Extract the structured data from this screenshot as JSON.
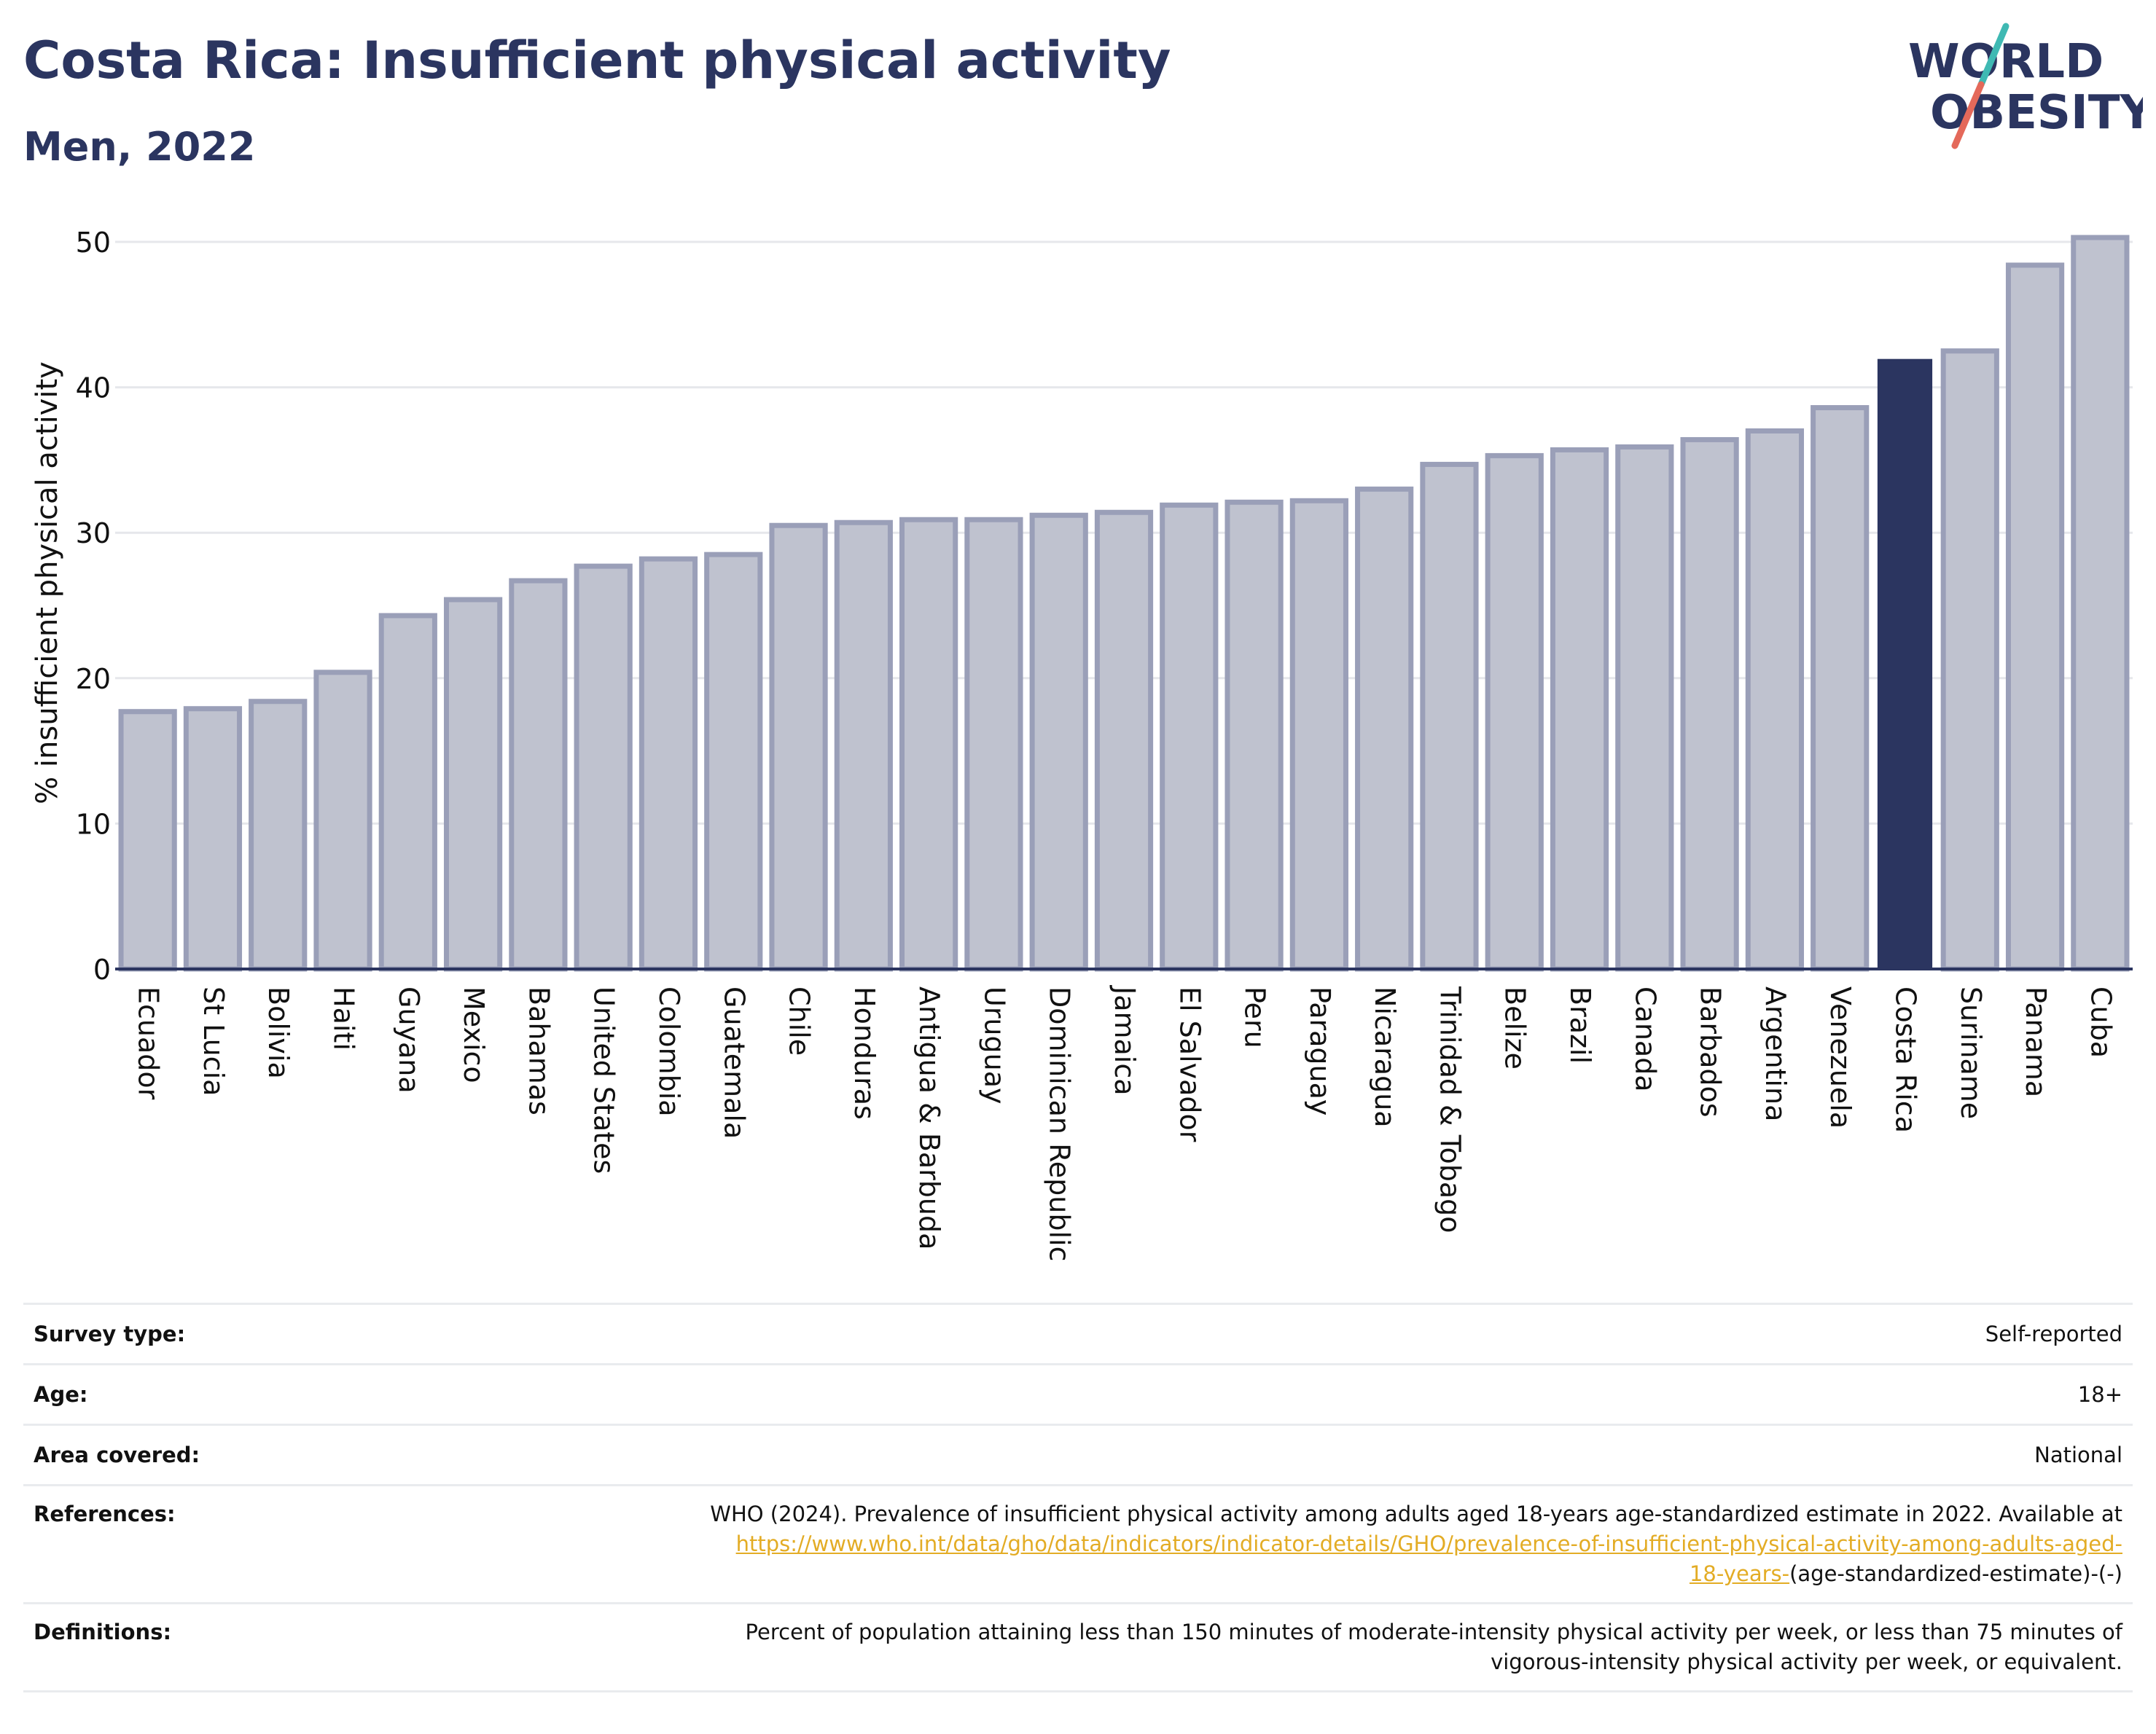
{
  "header": {
    "title": "Costa Rica: Insufficient physical activity",
    "subtitle": "Men, 2022"
  },
  "logo": {
    "line1": "WORLD",
    "line2": "OBESITY",
    "colors": {
      "text": "#2b3560",
      "slash_teal": "#3fb9b3",
      "slash_coral": "#e4695a"
    }
  },
  "colors": {
    "bar_fill": "#bfc2cf",
    "bar_stroke": "#9a9fb8",
    "highlight": "#2b3560",
    "grid": "#e6e7eb",
    "axis_line": "#2b3560"
  },
  "chart_data": {
    "type": "bar",
    "title": "Costa Rica: Insufficient physical activity",
    "subtitle": "Men, 2022",
    "xlabel": "",
    "ylabel": "% insufficient physical activity",
    "ylim": [
      0,
      52
    ],
    "yticks": [
      0,
      10,
      20,
      30,
      40,
      50
    ],
    "grid": true,
    "highlight": "Costa Rica",
    "categories": [
      "Ecuador",
      "St Lucia",
      "Bolivia",
      "Haiti",
      "Guyana",
      "Mexico",
      "Bahamas",
      "United States",
      "Colombia",
      "Guatemala",
      "Chile",
      "Honduras",
      "Antigua & Barbuda",
      "Uruguay",
      "Dominican Republic",
      "Jamaica",
      "El Salvador",
      "Peru",
      "Paraguay",
      "Nicaragua",
      "Trinidad & Tobago",
      "Belize",
      "Brazil",
      "Canada",
      "Barbados",
      "Argentina",
      "Venezuela",
      "Costa Rica",
      "Suriname",
      "Panama",
      "Cuba"
    ],
    "values": [
      17.7,
      17.9,
      18.4,
      20.4,
      24.3,
      25.4,
      26.7,
      27.7,
      28.2,
      28.5,
      30.5,
      30.7,
      30.9,
      30.9,
      31.2,
      31.4,
      31.9,
      32.1,
      32.2,
      33.0,
      34.7,
      35.3,
      35.7,
      35.9,
      36.4,
      37.0,
      38.6,
      41.9,
      42.5,
      48.4,
      50.3
    ]
  },
  "info": {
    "survey_type_label": "Survey type:",
    "survey_type_value": "Self-reported",
    "age_label": "Age:",
    "age_value": "18+",
    "area_label": "Area covered:",
    "area_value": "National",
    "references_label": "References:",
    "references_text": "WHO (2024). Prevalence of insufficient physical activity among adults aged 18-years age-standardized estimate in 2022. Available at",
    "references_link_part1": "https://www.who.int/data/gho/data/indicators/indicator-details/GHO/prevalence-of-insufficient-physical-activity-among-adults-aged-",
    "references_link_part2": "18-years-",
    "references_tail": "(age-standardized-estimate)-(-)",
    "definitions_label": "Definitions:",
    "definitions_line1": "Percent of population attaining less than 150 minutes of moderate-intensity physical activity per week, or less than 75 minutes of",
    "definitions_line2": "vigorous-intensity physical activity per week, or equivalent."
  }
}
